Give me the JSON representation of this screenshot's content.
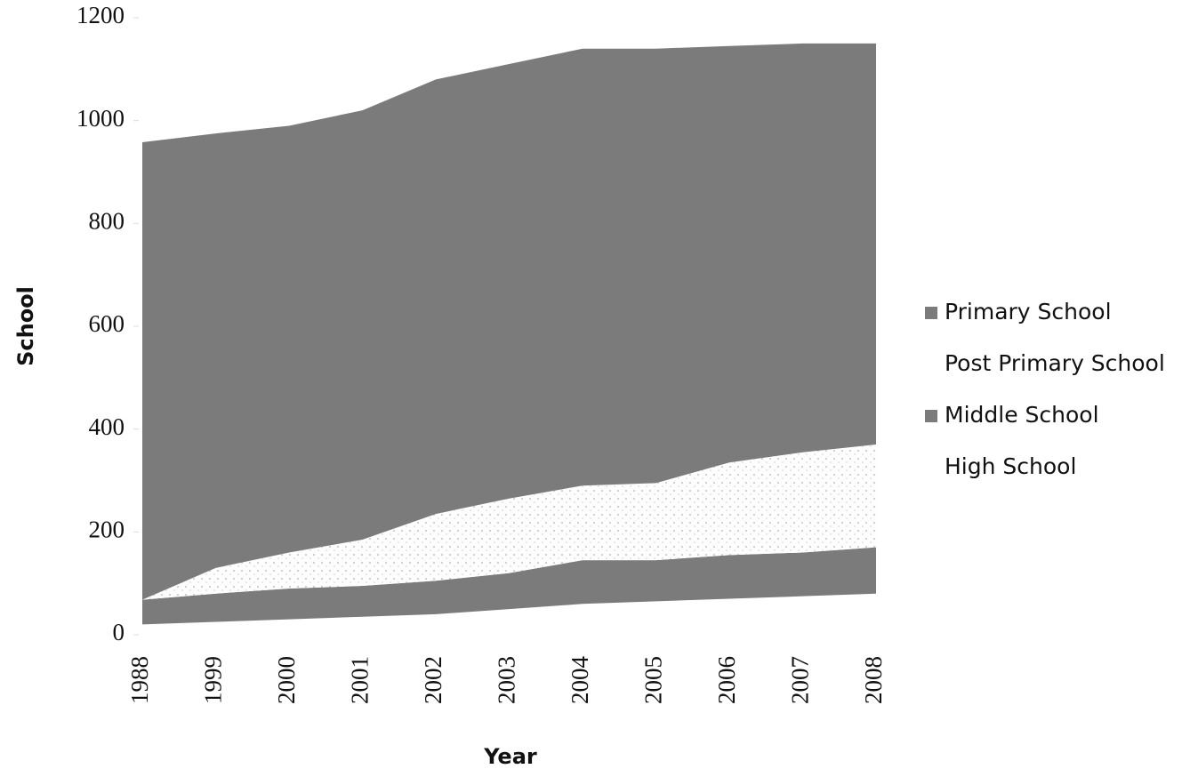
{
  "chart_data": {
    "type": "stacked_area",
    "x_label": "Year",
    "y_label": "School",
    "categories": [
      "1988",
      "1999",
      "2000",
      "2001",
      "2002",
      "2003",
      "2004",
      "2005",
      "2006",
      "2007",
      "2008"
    ],
    "series": [
      {
        "name": "Primary School",
        "color": "#7b7b7b",
        "values": [
          890,
          845,
          830,
          835,
          845,
          845,
          850,
          845,
          810,
          795,
          780
        ]
      },
      {
        "name": "Post Primary School",
        "color": "#ffffff",
        "values": [
          0,
          50,
          70,
          90,
          130,
          145,
          145,
          150,
          180,
          195,
          200
        ]
      },
      {
        "name": "Middle School",
        "color": "#7b7b7b",
        "values": [
          48,
          55,
          60,
          60,
          65,
          70,
          85,
          80,
          85,
          85,
          90
        ]
      },
      {
        "name": "High School",
        "color": "#ffffff",
        "values": [
          20,
          25,
          30,
          35,
          40,
          50,
          60,
          65,
          70,
          75,
          80
        ]
      }
    ],
    "ylim": [
      0,
      1200
    ],
    "yticks": [
      0,
      200,
      400,
      600,
      800,
      1000,
      1200
    ],
    "legend": "right"
  }
}
